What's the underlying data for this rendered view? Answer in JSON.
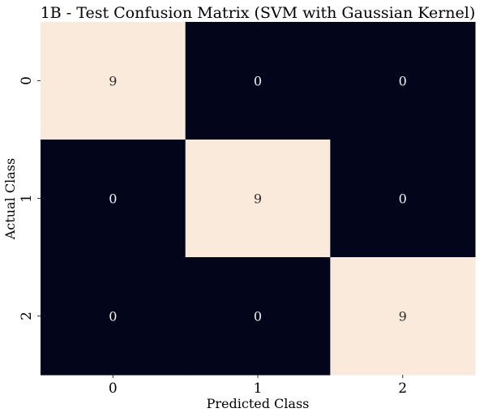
{
  "chart_data": {
    "type": "heatmap",
    "title": "1B - Test Confusion Matrix (SVM with Gaussian Kernel)",
    "xlabel": "Predicted Class",
    "ylabel": "Actual Class",
    "x_categories": [
      "0",
      "1",
      "2"
    ],
    "y_categories": [
      "0",
      "1",
      "2"
    ],
    "values": [
      [
        9,
        0,
        0
      ],
      [
        0,
        9,
        0
      ],
      [
        0,
        0,
        9
      ]
    ],
    "colorbar": false,
    "colors": {
      "high": "#faeadc",
      "low": "#03051a",
      "text_on_high": "#2b2b2b",
      "text_on_low": "#f2f2f2"
    }
  }
}
